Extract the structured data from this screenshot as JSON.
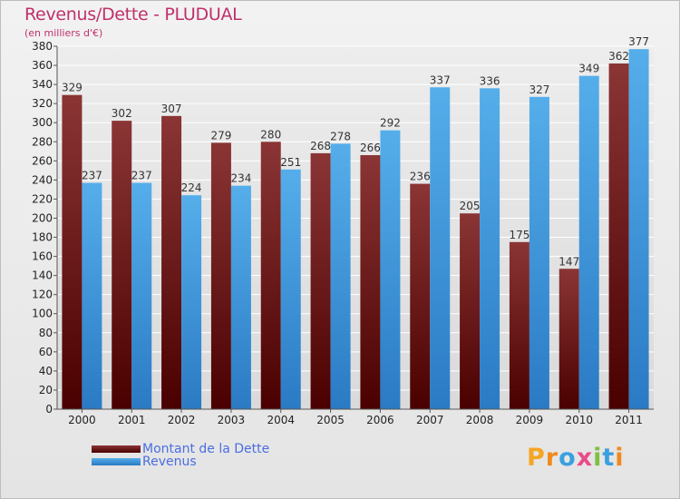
{
  "title": "Revenus/Dette - PLUDUAL",
  "subtitle": "(en milliers d'€)",
  "legend": {
    "debt_label": "Montant de la Dette",
    "revenue_label": "Revenus"
  },
  "logo": {
    "text": "Proxiti"
  },
  "colors": {
    "debt": "#7a1f1f",
    "debt_light": "#8b3535",
    "debt_dark": "#4a0000",
    "revenue": "#4fa8e8",
    "revenue_dark": "#2a7ac4",
    "title": "#c0306b",
    "legend_text": "#4a6ee0"
  },
  "chart_data": {
    "type": "bar",
    "categories": [
      "2000",
      "2001",
      "2002",
      "2003",
      "2004",
      "2005",
      "2006",
      "2007",
      "2008",
      "2009",
      "2010",
      "2011"
    ],
    "series": [
      {
        "name": "Montant de la Dette",
        "values": [
          329,
          302,
          307,
          279,
          280,
          268,
          266,
          236,
          205,
          175,
          147,
          362
        ]
      },
      {
        "name": "Revenus",
        "values": [
          237,
          237,
          224,
          234,
          251,
          278,
          292,
          337,
          336,
          327,
          349,
          377
        ]
      }
    ],
    "title": "Revenus/Dette - PLUDUAL",
    "ylabel": "(en milliers d'€)",
    "ylim": [
      0,
      380
    ],
    "ytick_step": 20,
    "grid": true,
    "legend_position": "bottom-left"
  }
}
